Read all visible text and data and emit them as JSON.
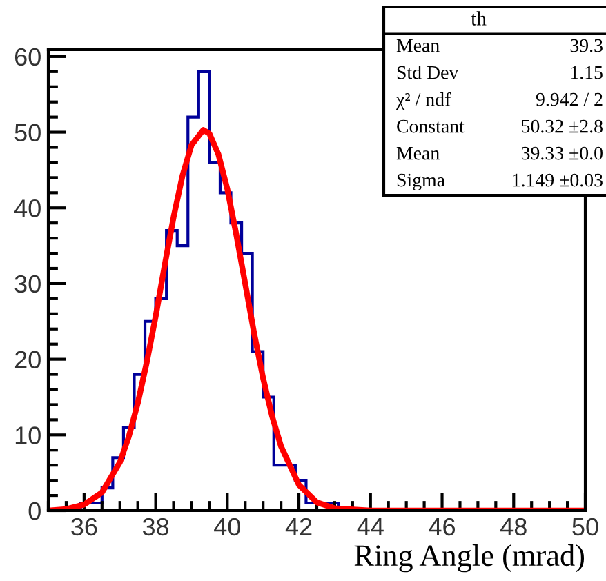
{
  "chart_data": {
    "type": "histogram",
    "xlabel": "Ring Angle (mrad)",
    "xlim": [
      35,
      50
    ],
    "xticks": [
      36,
      38,
      40,
      42,
      44,
      46,
      48,
      50
    ],
    "ylim": [
      0,
      60.9
    ],
    "yticks": [
      0,
      10,
      20,
      30,
      40,
      50,
      60
    ],
    "grid": false,
    "series": [
      {
        "color": "#00009a",
        "bins": [
          35.0,
          35.3,
          35.6,
          35.9,
          36.2,
          36.5,
          36.8,
          37.1,
          37.4,
          37.7,
          38.0,
          38.3,
          38.6,
          38.9,
          39.2,
          39.5,
          39.8,
          40.1,
          40.4,
          40.7,
          41.0,
          41.3,
          41.6,
          41.9,
          42.2,
          42.5,
          42.8,
          43.1,
          43.4,
          43.7,
          44.0,
          44.3,
          44.6,
          44.9,
          45.2,
          45.5,
          45.8,
          46.1,
          46.4,
          46.7,
          47.0,
          47.3,
          47.6,
          47.9,
          48.2,
          48.5,
          48.8,
          49.1,
          49.4,
          49.7,
          50.0
        ],
        "values": [
          0,
          0,
          0,
          1,
          1,
          3,
          7,
          11,
          18,
          25,
          28,
          37,
          35,
          52,
          58,
          46,
          42,
          38,
          34,
          21,
          15,
          6,
          6,
          4,
          1,
          1,
          1,
          0,
          0,
          0,
          0,
          0,
          0,
          0,
          0,
          0,
          0,
          0,
          0,
          0,
          0,
          0,
          0,
          0,
          0,
          0,
          0,
          0,
          0,
          0
        ]
      },
      {
        "type": "line",
        "color": "#ff0000",
        "x": [
          35,
          35.5,
          36,
          36.5,
          37,
          37.25,
          37.5,
          37.75,
          38,
          38.25,
          38.5,
          38.75,
          39,
          39.33,
          39.5,
          39.75,
          40,
          40.25,
          40.5,
          40.75,
          41,
          41.25,
          41.5,
          42,
          42.5,
          43,
          44,
          46,
          48,
          50
        ],
        "values": [
          0,
          0.2,
          0.8,
          2.4,
          6.4,
          9.8,
          14.2,
          19.6,
          25.7,
          32.4,
          38.8,
          44.3,
          48.3,
          50.3,
          49.8,
          47.1,
          42.5,
          36.5,
          30.0,
          23.4,
          17.5,
          12.5,
          8.5,
          3.4,
          1.1,
          0.3,
          0,
          0,
          0,
          0
        ]
      }
    ],
    "annotations": [
      "th",
      "Mean",
      "39.3",
      "Std Dev",
      "1.15",
      "χ² / ndf",
      "9.942 / 2",
      "Constant",
      "50.32 ±2.8",
      "Mean",
      "39.33 ±0.0",
      "Sigma",
      "1.149 ±0.03"
    ]
  }
}
